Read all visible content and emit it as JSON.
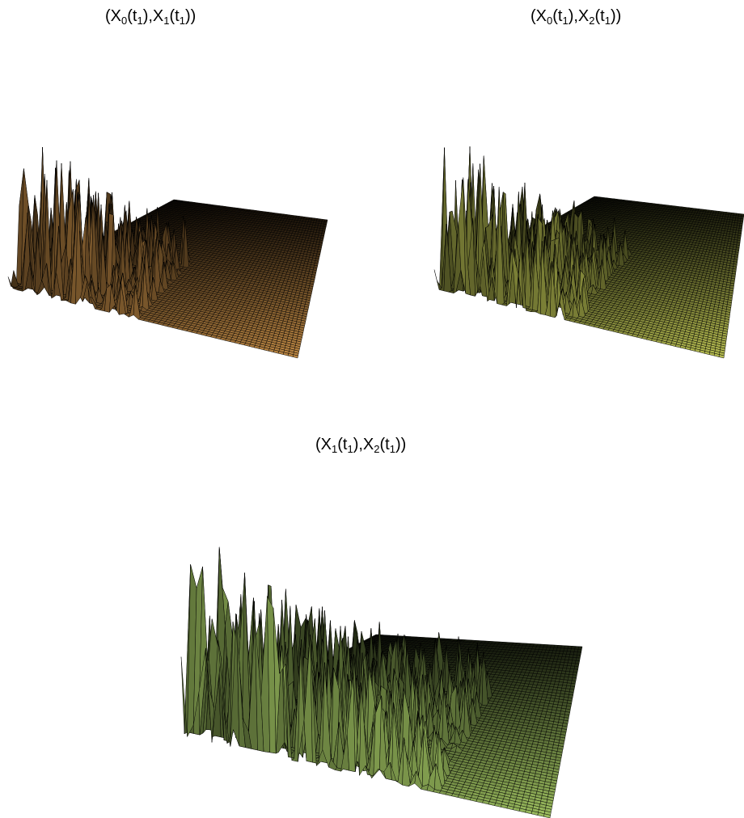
{
  "chart_data": [
    {
      "type": "surface3d",
      "title_parts": {
        "open": "(X",
        "a_sub": "0",
        "mid1": "(t",
        "t_sub_1": "1",
        "sep": "),X",
        "b_sub": "1",
        "mid2": "(t",
        "t_sub_2": "1",
        "close": "))"
      },
      "colormap": {
        "low": "#000000",
        "high": "#e0a050"
      },
      "grid": {
        "rows": 60,
        "cols": 60
      },
      "peak_region": {
        "row_max": 0.55,
        "col_max": 0.45
      },
      "max_height": 1.0,
      "seed": 11
    },
    {
      "type": "surface3d",
      "title_parts": {
        "open": "(X",
        "a_sub": "0",
        "mid1": "(t",
        "t_sub_1": "1",
        "sep": "),X",
        "b_sub": "2",
        "mid2": "(t",
        "t_sub_2": "1",
        "close": "))"
      },
      "colormap": {
        "low": "#000000",
        "high": "#d8e060"
      },
      "grid": {
        "rows": 60,
        "cols": 60
      },
      "peak_region": {
        "row_max": 0.6,
        "col_max": 0.5
      },
      "max_height": 1.0,
      "seed": 23
    },
    {
      "type": "surface3d",
      "title_parts": {
        "open": "(X",
        "a_sub": "1",
        "mid1": "(t",
        "t_sub_1": "1",
        "sep": "),X",
        "b_sub": "2",
        "mid2": "(t",
        "t_sub_2": "1",
        "close": "))"
      },
      "colormap": {
        "low": "#000000",
        "high": "#b8e070"
      },
      "grid": {
        "rows": 60,
        "cols": 60
      },
      "peak_region": {
        "row_max": 0.7,
        "col_max": 0.7
      },
      "max_height": 1.0,
      "seed": 37
    }
  ]
}
